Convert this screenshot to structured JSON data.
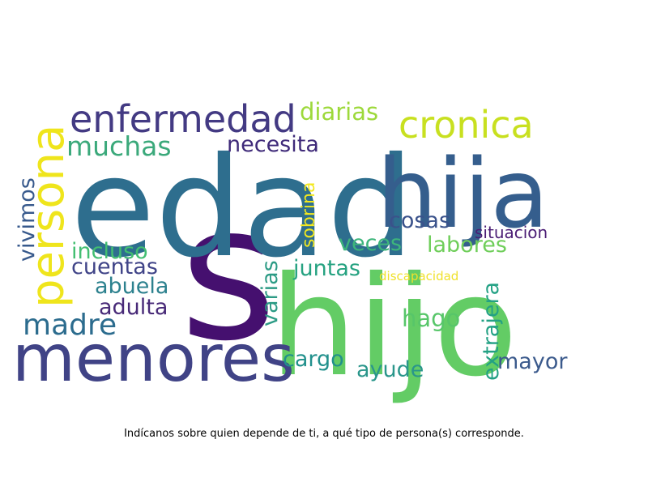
{
  "caption": "Indícanos sobre quien depende de ti, a qué tipo de persona(s) corresponde.",
  "words": [
    {
      "id": "w-s",
      "text": "s",
      "color": "#45106f"
    },
    {
      "id": "w-edad",
      "text": "edad",
      "color": "#2e6e8e"
    },
    {
      "id": "w-hijo",
      "text": "hijo",
      "color": "#63cc65"
    },
    {
      "id": "w-hija",
      "text": "hija",
      "color": "#355e8d"
    },
    {
      "id": "w-menores",
      "text": "menores",
      "color": "#404386"
    },
    {
      "id": "w-persona",
      "text": "persona",
      "color": "#efe51c"
    },
    {
      "id": "w-enfermedad",
      "text": "enfermedad",
      "color": "#433a83"
    },
    {
      "id": "w-cronica",
      "text": "cronica",
      "color": "#c8e020"
    },
    {
      "id": "w-muchas",
      "text": "muchas",
      "color": "#3ba97b"
    },
    {
      "id": "w-diarias",
      "text": "diarias",
      "color": "#9dd93b"
    },
    {
      "id": "w-necesita",
      "text": "necesita",
      "color": "#3f2a79"
    },
    {
      "id": "w-vivimos",
      "text": "vivimos",
      "color": "#37598c"
    },
    {
      "id": "w-sobrina",
      "text": "sobrina",
      "color": "#f3e81e"
    },
    {
      "id": "w-cosas",
      "text": "cosas",
      "color": "#3a528b"
    },
    {
      "id": "w-incluso",
      "text": "incluso",
      "color": "#42be71"
    },
    {
      "id": "w-veces",
      "text": "veces",
      "color": "#3db57b"
    },
    {
      "id": "w-labores",
      "text": "labores",
      "color": "#6fce5a"
    },
    {
      "id": "w-situacion",
      "text": "situacion",
      "color": "#4a1c74"
    },
    {
      "id": "w-cuentas",
      "text": "cuentas",
      "color": "#404488"
    },
    {
      "id": "w-varias",
      "text": "varias",
      "color": "#2c9b85"
    },
    {
      "id": "w-juntas",
      "text": "juntas",
      "color": "#26a281"
    },
    {
      "id": "w-extrajera",
      "text": "extrajera",
      "color": "#23a184"
    },
    {
      "id": "w-discapacidad",
      "text": "discapacidad",
      "color": "#f0e12b"
    },
    {
      "id": "w-abuela",
      "text": "abuela",
      "color": "#2c818e"
    },
    {
      "id": "w-adulta",
      "text": "adulta",
      "color": "#482a78"
    },
    {
      "id": "w-madre",
      "text": "madre",
      "color": "#2c6c8e"
    },
    {
      "id": "w-hago",
      "text": "hago",
      "color": "#57c669"
    },
    {
      "id": "w-cargo",
      "text": "cargo",
      "color": "#21908c"
    },
    {
      "id": "w-ayude",
      "text": "ayude",
      "color": "#2a968b"
    },
    {
      "id": "w-mayor",
      "text": "mayor",
      "color": "#3b5a8c"
    }
  ]
}
